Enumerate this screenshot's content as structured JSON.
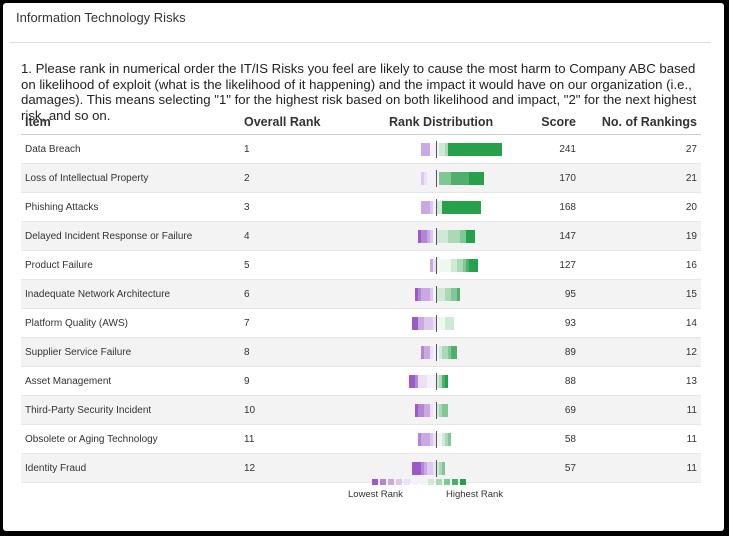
{
  "header": {
    "title": "Information Technology Risks"
  },
  "question": {
    "text": "1. Please rank in numerical order the IT/IS Risks you feel are likely to cause the most harm to Company ABC based on likelihood of exploit (what is the likelihood of it happening) and the impact it would have on our organization (i.e., damages). This means selecting \"1\" for the highest risk based on both likelihood and impact, \"2\" for the next highest risk, and so on."
  },
  "table": {
    "columns": {
      "item": "Item",
      "overall_rank": "Overall Rank",
      "rank_distribution": "Rank Distribution",
      "score": "Score",
      "num_rankings": "No. of Rankings"
    },
    "rows": [
      {
        "item": "Data Breach",
        "rank": "1",
        "score": "241",
        "count": "27"
      },
      {
        "item": "Loss of Intellectual Property",
        "rank": "2",
        "score": "170",
        "count": "21"
      },
      {
        "item": "Phishing Attacks",
        "rank": "3",
        "score": "168",
        "count": "20"
      },
      {
        "item": "Delayed Incident Response or Failure",
        "rank": "4",
        "score": "147",
        "count": "19"
      },
      {
        "item": "Product Failure",
        "rank": "5",
        "score": "127",
        "count": "16"
      },
      {
        "item": "Inadequate Network Architecture",
        "rank": "6",
        "score": "95",
        "count": "15"
      },
      {
        "item": "Platform Quality (AWS)",
        "rank": "7",
        "score": "93",
        "count": "14"
      },
      {
        "item": "Supplier Service Failure",
        "rank": "8",
        "score": "89",
        "count": "12"
      },
      {
        "item": "Asset Management",
        "rank": "9",
        "score": "88",
        "count": "13"
      },
      {
        "item": "Third-Party Security Incident",
        "rank": "10",
        "score": "69",
        "count": "11"
      },
      {
        "item": "Obsolete or Aging Technology",
        "rank": "11",
        "score": "58",
        "count": "11"
      },
      {
        "item": "Identity Fraud",
        "rank": "12",
        "score": "57",
        "count": "11"
      }
    ]
  },
  "rank_distribution": {
    "colors": [
      "#9b59c9",
      "#b285d6",
      "#c9a9e2",
      "#dcc8ec",
      "#ece0f4",
      "#f6f0fa",
      "#eef7f0",
      "#cfe9d6",
      "#a9d9b5",
      "#7fc795",
      "#4fb06d",
      "#27a04c"
    ],
    "rows": [
      [
        0,
        0,
        3,
        0,
        0,
        2,
        1,
        2,
        1,
        0,
        0,
        18
      ],
      [
        0,
        0,
        0,
        1,
        1,
        3,
        1,
        0,
        0,
        4,
        6,
        5
      ],
      [
        0,
        0,
        3,
        1,
        0,
        1,
        0,
        2,
        0,
        0,
        0,
        13
      ],
      [
        1,
        2,
        1,
        1,
        0,
        1,
        0,
        4,
        4,
        2,
        0,
        3
      ],
      [
        0,
        0,
        1,
        0,
        1,
        0,
        5,
        2,
        2,
        1,
        1,
        3
      ],
      [
        1,
        1,
        3,
        1,
        0,
        1,
        0,
        3,
        2,
        2,
        1,
        0
      ],
      [
        2,
        0,
        2,
        3,
        1,
        0,
        3,
        3,
        0,
        0,
        0,
        0
      ],
      [
        0,
        1,
        2,
        0,
        1,
        1,
        1,
        1,
        2,
        1,
        2,
        0
      ],
      [
        2,
        1,
        0,
        0,
        3,
        3,
        0,
        1,
        1,
        0,
        1,
        1
      ],
      [
        1,
        2,
        2,
        0,
        1,
        1,
        0,
        1,
        1,
        2,
        0,
        0
      ],
      [
        0,
        1,
        3,
        1,
        1,
        0,
        2,
        1,
        1,
        1,
        0,
        0
      ],
      [
        3,
        1,
        1,
        2,
        1,
        0,
        0,
        1,
        1,
        1,
        0,
        0
      ]
    ]
  },
  "legend": {
    "low_label": "Lowest Rank",
    "high_label": "Highest Rank"
  }
}
